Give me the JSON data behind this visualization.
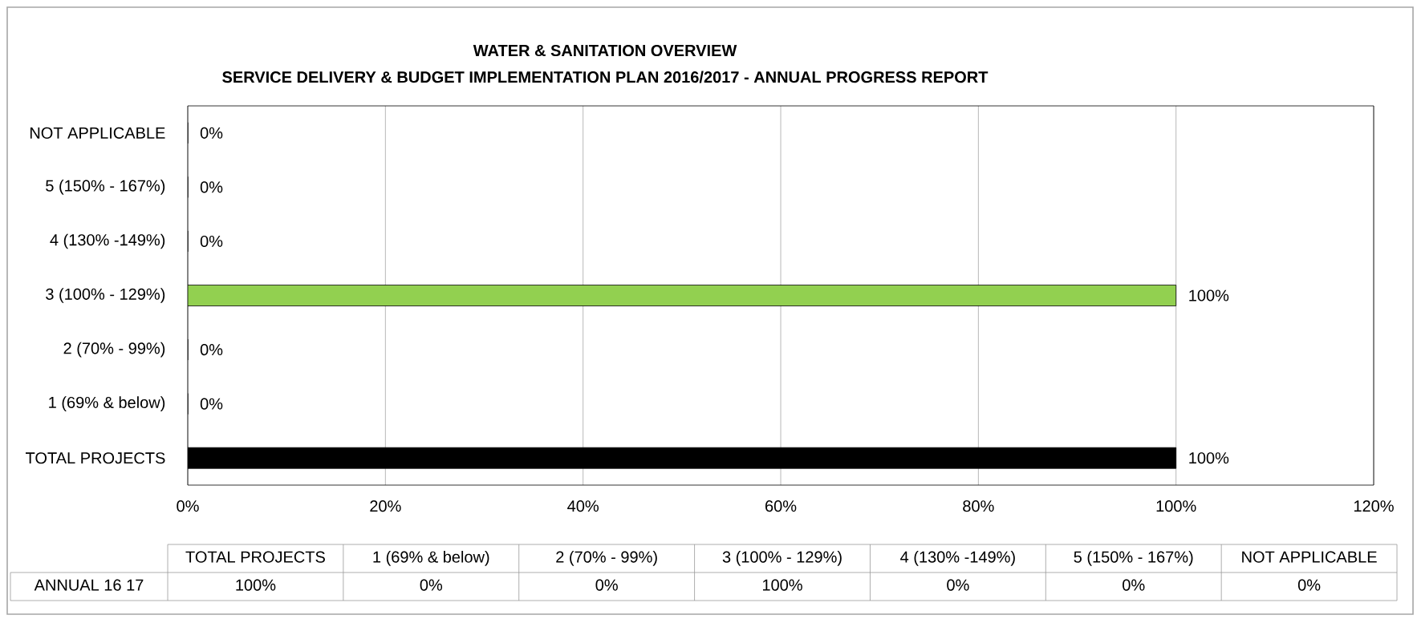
{
  "chart_data": {
    "type": "bar",
    "orientation": "horizontal",
    "title": "WATER & SANITATION OVERVIEW",
    "subtitle": "SERVICE DELIVERY & BUDGET IMPLEMENTATION PLAN 2016/2017 -  ANNUAL PROGRESS REPORT",
    "categories": [
      "NOT APPLICABLE",
      "5 (150% - 167%)",
      "4 (130% -149%)",
      "3 (100% - 129%)",
      "2 (70% - 99%)",
      "1 (69% & below)",
      "TOTAL PROJECTS"
    ],
    "series": [
      {
        "name": "ANNUAL 16 17",
        "values": [
          0,
          0,
          0,
          100,
          0,
          0,
          100
        ],
        "colors": [
          "#92d050",
          "#92d050",
          "#92d050",
          "#92d050",
          "#92d050",
          "#92d050",
          "#000000"
        ],
        "value_labels": [
          "0%",
          "0%",
          "0%",
          "100%",
          "0%",
          "0%",
          "100%"
        ]
      }
    ],
    "xlim": [
      0,
      120
    ],
    "xticks": [
      {
        "value": 0,
        "label": "0%"
      },
      {
        "value": 20,
        "label": "20%"
      },
      {
        "value": 40,
        "label": "40%"
      },
      {
        "value": 60,
        "label": "60%"
      },
      {
        "value": 80,
        "label": "80%"
      },
      {
        "value": 100,
        "label": "100%"
      },
      {
        "value": 120,
        "label": "120%"
      }
    ],
    "grid": "x"
  }
}
